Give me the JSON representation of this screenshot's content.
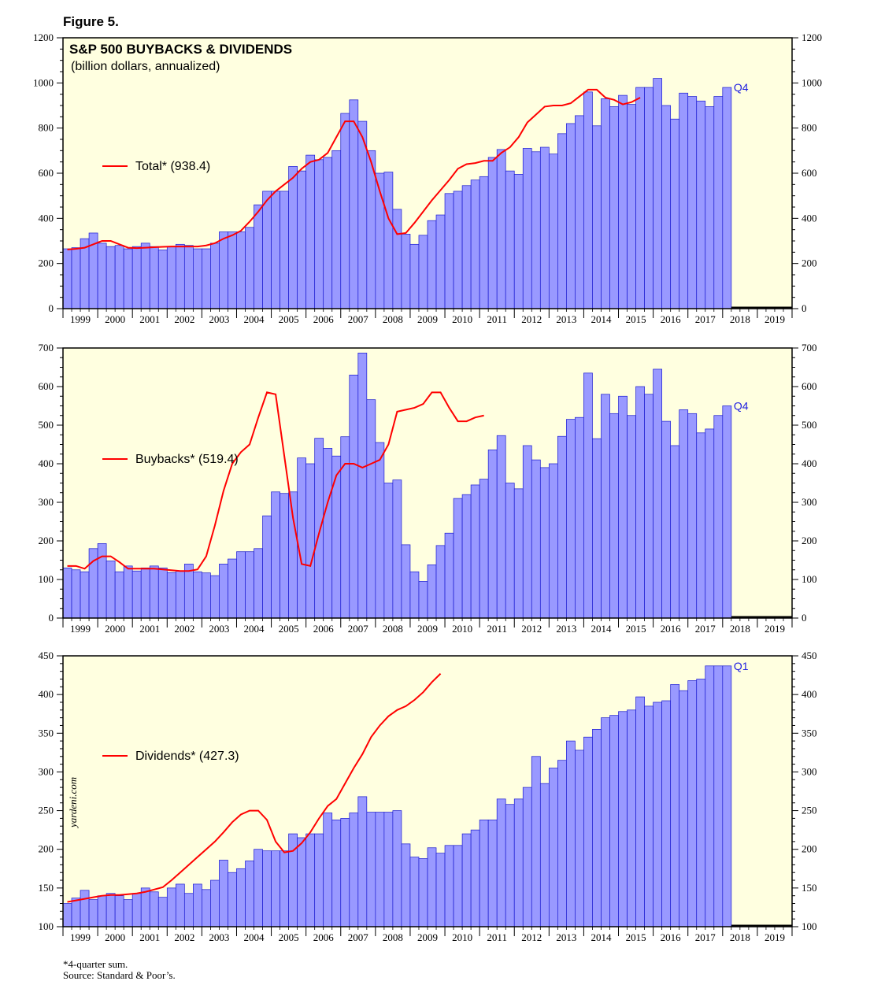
{
  "figure_label": "Figure 5.",
  "watermark": "yardeni.com",
  "footnote": "*4-quarter sum.",
  "source": "Source: Standard & Poor’s.",
  "colors": {
    "bg": "#ffffe0",
    "bar": "#9999ff",
    "bar_edge": "#1a1ad0",
    "line": "#ff0000",
    "quarter_label": "#2020e0"
  },
  "chart_data": [
    {
      "type": "bar",
      "title": "S&P 500 BUYBACKS & DIVIDENDS",
      "subtitle": "(billion dollars, annualized)",
      "legend": "Total* (938.4)",
      "last_label": "Q4",
      "ylim": [
        0,
        1200
      ],
      "yticks": [
        0,
        200,
        400,
        600,
        800,
        1000,
        1200
      ],
      "years": [
        "1999",
        "2000",
        "2001",
        "2002",
        "2003",
        "2004",
        "2005",
        "2006",
        "2007",
        "2008",
        "2009",
        "2010",
        "2011",
        "2012",
        "2013",
        "2014",
        "2015",
        "2016",
        "2017",
        "2018",
        "2019"
      ],
      "x_start": 1999,
      "values": [
        265,
        270,
        310,
        335,
        290,
        275,
        280,
        265,
        275,
        290,
        275,
        260,
        275,
        285,
        280,
        265,
        265,
        290,
        340,
        340,
        340,
        360,
        460,
        520,
        520,
        520,
        630,
        610,
        680,
        660,
        670,
        700,
        865,
        925,
        830,
        700,
        600,
        605,
        440,
        330,
        285,
        325,
        390,
        415,
        510,
        520,
        545,
        570,
        585,
        670,
        705,
        610,
        595,
        710,
        695,
        715,
        685,
        775,
        820,
        855,
        960,
        810,
        930,
        895,
        945,
        905,
        980,
        980,
        1020,
        900,
        840,
        955,
        940,
        920,
        895,
        940,
        980
      ],
      "line": [
        262,
        265,
        270,
        285,
        300,
        300,
        285,
        270,
        268,
        270,
        272,
        274,
        275,
        275,
        275,
        275,
        280,
        290,
        310,
        325,
        345,
        385,
        430,
        480,
        520,
        550,
        580,
        620,
        650,
        660,
        690,
        760,
        830,
        830,
        760,
        650,
        520,
        400,
        330,
        335,
        380,
        430,
        480,
        525,
        570,
        620,
        640,
        645,
        655,
        655,
        690,
        715,
        760,
        825,
        860,
        895,
        900,
        900,
        910,
        940,
        970,
        970,
        935,
        925,
        905,
        915,
        935
      ]
    },
    {
      "type": "bar",
      "title": "",
      "subtitle": "",
      "legend": "Buybacks* (519.4)",
      "last_label": "Q4",
      "ylim": [
        0,
        700
      ],
      "yticks": [
        0,
        100,
        200,
        300,
        400,
        500,
        600,
        700
      ],
      "years": [
        "1999",
        "2000",
        "2001",
        "2002",
        "2003",
        "2004",
        "2005",
        "2006",
        "2007",
        "2008",
        "2009",
        "2010",
        "2011",
        "2012",
        "2013",
        "2014",
        "2015",
        "2016",
        "2017",
        "2018",
        "2019"
      ],
      "x_start": 1999,
      "values": [
        130,
        125,
        120,
        180,
        193,
        148,
        120,
        135,
        122,
        130,
        135,
        130,
        118,
        122,
        140,
        120,
        117,
        110,
        140,
        153,
        172,
        172,
        180,
        265,
        327,
        323,
        327,
        415,
        400,
        466,
        440,
        420,
        470,
        630,
        687,
        566,
        455,
        350,
        358,
        190,
        120,
        95,
        138,
        188,
        220,
        310,
        320,
        345,
        360,
        436,
        473,
        350,
        335,
        447,
        410,
        390,
        400,
        471,
        515,
        520,
        635,
        465,
        580,
        530,
        575,
        525,
        600,
        580,
        645,
        510,
        447,
        540,
        530,
        480,
        490,
        525,
        550
      ],
      "line": [
        135,
        135,
        128,
        148,
        160,
        160,
        145,
        128,
        128,
        128,
        128,
        126,
        124,
        122,
        122,
        126,
        160,
        240,
        330,
        400,
        430,
        450,
        520,
        585,
        580,
        420,
        260,
        140,
        135,
        220,
        300,
        370,
        400,
        400,
        390,
        400,
        410,
        450,
        535,
        540,
        545,
        555,
        585,
        585,
        545,
        510,
        510,
        520,
        525
      ]
    },
    {
      "type": "bar",
      "title": "",
      "subtitle": "",
      "legend": "Dividends* (427.3)",
      "last_label": "Q1",
      "ylim": [
        100,
        450
      ],
      "yticks": [
        100,
        150,
        200,
        250,
        300,
        350,
        400,
        450
      ],
      "years": [
        "1999",
        "2000",
        "2001",
        "2002",
        "2003",
        "2004",
        "2005",
        "2006",
        "2007",
        "2008",
        "2009",
        "2010",
        "2011",
        "2012",
        "2013",
        "2014",
        "2015",
        "2016",
        "2017",
        "2018",
        "2019"
      ],
      "x_start": 1999,
      "values": [
        130,
        137,
        147,
        135,
        140,
        143,
        140,
        135,
        143,
        150,
        145,
        138,
        150,
        155,
        143,
        155,
        148,
        160,
        186,
        170,
        175,
        185,
        200,
        198,
        198,
        198,
        220,
        215,
        220,
        220,
        247,
        238,
        240,
        247,
        268,
        248,
        248,
        248,
        250,
        207,
        190,
        188,
        202,
        195,
        205,
        205,
        220,
        225,
        238,
        238,
        265,
        258,
        265,
        280,
        320,
        285,
        305,
        315,
        340,
        328,
        345,
        355,
        370,
        373,
        378,
        380,
        397,
        385,
        390,
        392,
        413,
        405,
        418,
        420,
        437,
        437,
        437
      ],
      "line": [
        132,
        134,
        136,
        138,
        140,
        141,
        141,
        142,
        143,
        145,
        148,
        151,
        160,
        170,
        180,
        190,
        200,
        210,
        222,
        235,
        245,
        250,
        250,
        238,
        210,
        196,
        198,
        208,
        222,
        240,
        256,
        265,
        285,
        305,
        323,
        345,
        360,
        372,
        380,
        385,
        393,
        403,
        416,
        427
      ]
    }
  ]
}
